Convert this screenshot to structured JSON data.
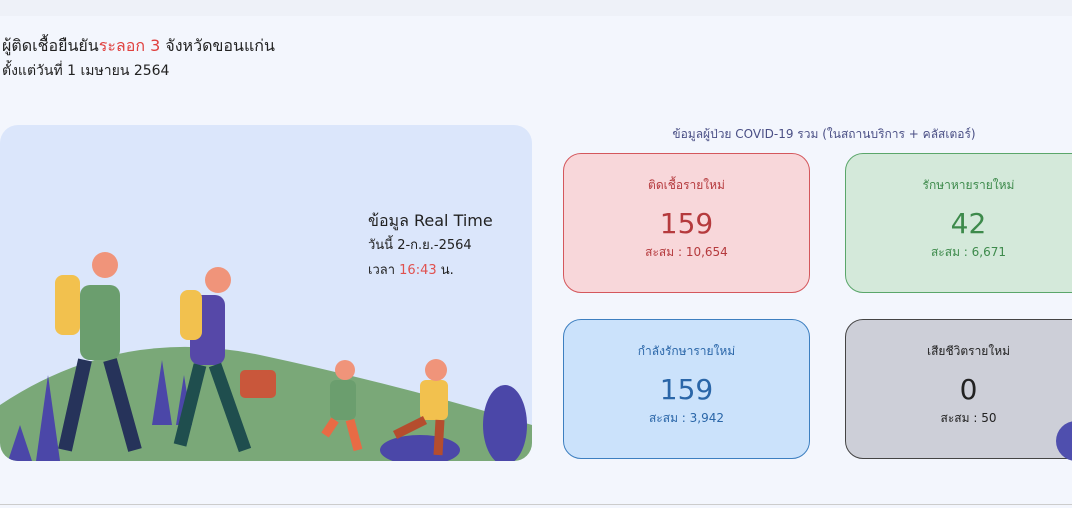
{
  "header": {
    "title_prefix": "ผู้ติดเชื้อยืนยัน",
    "title_highlight": "ระลอก 3",
    "title_suffix": " จังหวัดขอนแก่น",
    "subtitle": "ตั้งแต่วันที่ 1 เมษายน 2564"
  },
  "realtime": {
    "heading": "ข้อมูล Real Time",
    "date": "วันนี้ 2-ก.ย.-2564",
    "time_prefix": "เวลา ",
    "time": "16:43",
    "time_suffix": " น."
  },
  "section_title": "ข้อมูลผู้ป่วย COVID-19 รวม (ในสถานบริการ + คลัสเตอร์)",
  "cards": [
    {
      "label": "ติดเชื้อรายใหม่",
      "value": "159",
      "total": "สะสม : 10,654",
      "color": "#c0393b"
    },
    {
      "label": "รักษาหายรายใหม่",
      "value": "42",
      "total": "สะสม : 6,671",
      "color": "#3d8a4b"
    },
    {
      "label": "กำลังรักษารายใหม่",
      "value": "159",
      "total": "สะสม : 3,942",
      "color": "#2a66a8"
    },
    {
      "label": "เสียชีวิตรายใหม่",
      "value": "0",
      "total": "สะสม : 50",
      "color": "#222222"
    }
  ]
}
